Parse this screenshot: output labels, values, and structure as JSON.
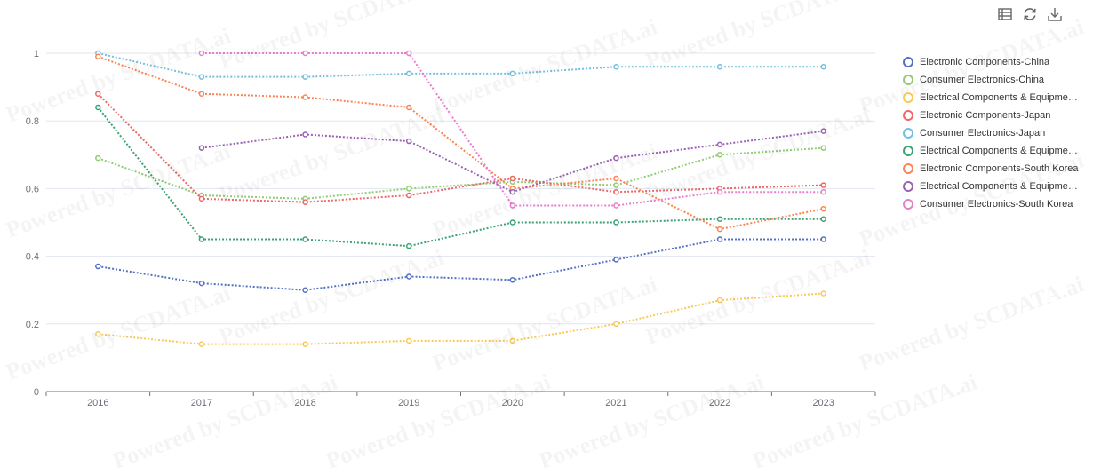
{
  "toolbox": {
    "icons": [
      "data-view-icon",
      "refresh-icon",
      "download-icon"
    ]
  },
  "watermark": "Powered by SCDATA.ai",
  "chart_data": {
    "type": "line",
    "title": "",
    "xlabel": "",
    "ylabel": "",
    "categories": [
      "2016",
      "2017",
      "2018",
      "2019",
      "2020",
      "2021",
      "2022",
      "2023"
    ],
    "ylim": [
      0,
      1
    ],
    "yticks": [
      0,
      0.2,
      0.4,
      0.6,
      0.8,
      1
    ],
    "ytick_labels": [
      "0",
      "0.2",
      "0.4",
      "0.6",
      "0.8",
      "1"
    ],
    "grid": true,
    "legend_position": "right",
    "line_style": "dotted",
    "series": [
      {
        "name": "Electronic Components-China",
        "color": "#5470c6",
        "values": [
          0.37,
          0.32,
          0.3,
          0.34,
          0.33,
          0.39,
          0.45,
          0.45
        ]
      },
      {
        "name": "Consumer Electronics-China",
        "color": "#91cc75",
        "values": [
          0.69,
          0.58,
          0.57,
          0.6,
          0.62,
          0.61,
          0.7,
          0.72
        ]
      },
      {
        "name": "Electrical Components & Equipment-China",
        "color": "#fac858",
        "values": [
          0.17,
          0.14,
          0.14,
          0.15,
          0.15,
          0.2,
          0.27,
          0.29
        ]
      },
      {
        "name": "Electronic Components-Japan",
        "color": "#ee6666",
        "values": [
          0.88,
          0.57,
          0.56,
          0.58,
          0.63,
          0.59,
          0.6,
          0.61
        ]
      },
      {
        "name": "Consumer Electronics-Japan",
        "color": "#73c0de",
        "values": [
          1.0,
          0.93,
          0.93,
          0.94,
          0.94,
          0.96,
          0.96,
          0.96
        ]
      },
      {
        "name": "Electrical Components & Equipment-Japan",
        "color": "#3ba272",
        "values": [
          0.84,
          0.45,
          0.45,
          0.43,
          0.5,
          0.5,
          0.51,
          0.51
        ]
      },
      {
        "name": "Electronic Components-South Korea",
        "color": "#fc8452",
        "values": [
          0.99,
          0.88,
          0.87,
          0.84,
          0.6,
          0.63,
          0.48,
          0.54
        ]
      },
      {
        "name": "Electrical Components & Equipment-South Korea",
        "color": "#9a60b4",
        "values": [
          null,
          0.72,
          0.76,
          0.74,
          0.59,
          0.69,
          0.73,
          0.77
        ]
      },
      {
        "name": "Consumer Electronics-South Korea",
        "color": "#ea7ccc",
        "values": [
          null,
          1.0,
          1.0,
          1.0,
          0.55,
          0.55,
          0.59,
          0.59
        ]
      }
    ]
  }
}
